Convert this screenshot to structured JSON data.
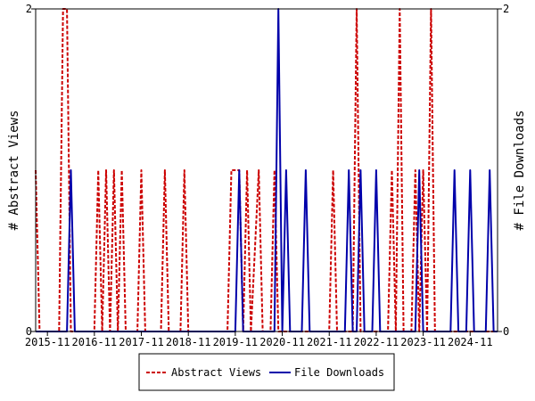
{
  "chart_data": {
    "type": "line",
    "title": "",
    "xlabel": "",
    "ylabel": "# Abstract Views",
    "y2label": "# File Downloads",
    "x_start": "2015-08",
    "x_end": "2025-06",
    "xtick_labels": [
      "2015-11",
      "2016-11",
      "2017-11",
      "2018-11",
      "2019-11",
      "2020-11",
      "2021-11",
      "2022-11",
      "2023-11",
      "2024-11"
    ],
    "ylim": [
      0,
      2
    ],
    "y2lim": [
      0,
      2
    ],
    "yticks": [
      "0",
      "2"
    ],
    "y2ticks": [
      "0",
      "2"
    ],
    "grid": false,
    "legend_position": "bottom-center",
    "series": [
      {
        "name": "Abstract Views",
        "axis": "left",
        "color": "#cc0000",
        "style": "dashed",
        "points": [
          [
            "2015-08",
            1
          ],
          [
            "2015-09",
            0
          ],
          [
            "2016-02",
            0
          ],
          [
            "2016-03",
            2
          ],
          [
            "2016-04",
            2
          ],
          [
            "2016-05",
            0
          ],
          [
            "2016-11",
            0
          ],
          [
            "2016-12",
            1
          ],
          [
            "2017-01",
            0
          ],
          [
            "2017-02",
            1
          ],
          [
            "2017-03",
            0
          ],
          [
            "2017-04",
            1
          ],
          [
            "2017-05",
            0
          ],
          [
            "2017-06",
            1
          ],
          [
            "2017-07",
            0
          ],
          [
            "2017-10",
            0
          ],
          [
            "2017-11",
            1
          ],
          [
            "2017-12",
            0
          ],
          [
            "2018-04",
            0
          ],
          [
            "2018-05",
            1
          ],
          [
            "2018-06",
            0
          ],
          [
            "2018-09",
            0
          ],
          [
            "2018-10",
            1
          ],
          [
            "2018-11",
            0
          ],
          [
            "2019-09",
            0
          ],
          [
            "2019-10",
            1
          ],
          [
            "2019-12",
            1
          ],
          [
            "2020-01",
            0
          ],
          [
            "2020-02",
            1
          ],
          [
            "2020-03",
            0
          ],
          [
            "2020-05",
            1
          ],
          [
            "2020-06",
            0
          ],
          [
            "2020-08",
            0
          ],
          [
            "2020-09",
            1
          ],
          [
            "2020-10",
            0
          ],
          [
            "2021-11",
            0
          ],
          [
            "2021-12",
            1
          ],
          [
            "2022-01",
            0
          ],
          [
            "2022-05",
            0
          ],
          [
            "2022-06",
            2
          ],
          [
            "2022-07",
            0
          ],
          [
            "2023-02",
            0
          ],
          [
            "2023-03",
            1
          ],
          [
            "2023-04",
            0
          ],
          [
            "2023-05",
            2
          ],
          [
            "2023-06",
            0
          ],
          [
            "2023-08",
            0
          ],
          [
            "2023-09",
            1
          ],
          [
            "2023-10",
            0
          ],
          [
            "2023-11",
            1
          ],
          [
            "2023-12",
            0
          ],
          [
            "2024-01",
            2
          ],
          [
            "2024-02",
            0
          ],
          [
            "2025-06",
            0
          ]
        ]
      },
      {
        "name": "File Downloads",
        "axis": "right",
        "color": "#0000aa",
        "style": "solid",
        "points": [
          [
            "2015-08",
            0
          ],
          [
            "2016-04",
            0
          ],
          [
            "2016-05",
            1
          ],
          [
            "2016-06",
            0
          ],
          [
            "2019-11",
            0
          ],
          [
            "2019-12",
            1
          ],
          [
            "2020-01",
            0
          ],
          [
            "2020-09",
            0
          ],
          [
            "2020-10",
            2
          ],
          [
            "2020-11",
            0
          ],
          [
            "2020-12",
            1
          ],
          [
            "2021-01",
            0
          ],
          [
            "2021-04",
            0
          ],
          [
            "2021-05",
            1
          ],
          [
            "2021-06",
            0
          ],
          [
            "2022-03",
            0
          ],
          [
            "2022-04",
            1
          ],
          [
            "2022-05",
            0
          ],
          [
            "2022-06",
            0
          ],
          [
            "2022-07",
            1
          ],
          [
            "2022-08",
            0
          ],
          [
            "2022-10",
            0
          ],
          [
            "2022-11",
            1
          ],
          [
            "2022-12",
            0
          ],
          [
            "2023-09",
            0
          ],
          [
            "2023-10",
            1
          ],
          [
            "2023-11",
            0
          ],
          [
            "2024-06",
            0
          ],
          [
            "2024-07",
            1
          ],
          [
            "2024-08",
            0
          ],
          [
            "2024-10",
            0
          ],
          [
            "2024-11",
            1
          ],
          [
            "2024-12",
            0
          ],
          [
            "2025-03",
            0
          ],
          [
            "2025-04",
            1
          ],
          [
            "2025-05",
            0
          ],
          [
            "2025-06",
            0
          ]
        ]
      }
    ]
  }
}
